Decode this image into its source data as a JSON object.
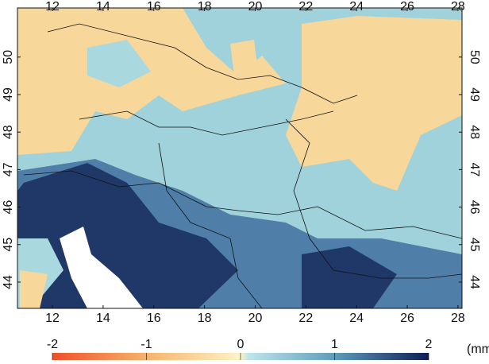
{
  "map": {
    "xlim": [
      10.62,
      28.16
    ],
    "ylim": [
      43.3,
      51.31
    ],
    "xticks": [
      12,
      14,
      16,
      18,
      20,
      22,
      24,
      26,
      28
    ],
    "yticks": [
      44,
      45,
      46,
      47,
      48,
      49,
      50
    ],
    "colorbar": {
      "range": [
        -2,
        2
      ],
      "ticks": [
        -2,
        -1,
        0,
        1,
        2
      ],
      "unit": "(mm)"
    }
  }
}
